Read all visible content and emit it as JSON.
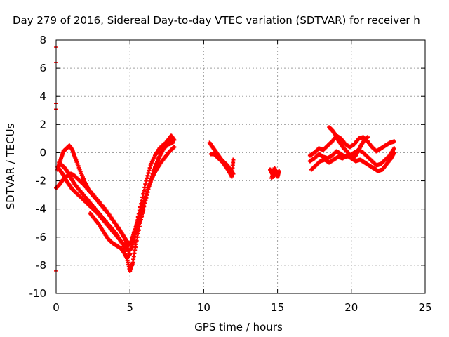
{
  "chart_data": {
    "type": "scatter",
    "title": "Day 279 of 2016, Sidereal Day-to-day VTEC variation (SDTVAR) for receiver h",
    "xlabel": "GPS time / hours",
    "ylabel": "SDTVAR / TECUs",
    "xlim": [
      0,
      25
    ],
    "ylim": [
      -10,
      8
    ],
    "x_ticks": [
      0,
      5,
      10,
      15,
      20,
      25
    ],
    "y_ticks": [
      -10,
      -8,
      -6,
      -4,
      -2,
      0,
      2,
      4,
      6,
      8
    ],
    "grid": true,
    "marker": "plus",
    "color": "#ff0000",
    "error_bar_marks": [
      {
        "x": 0,
        "y": 7.5
      },
      {
        "x": 0,
        "y": 6.4
      },
      {
        "x": 0,
        "y": 3.5
      },
      {
        "x": 0,
        "y": 3.1
      },
      {
        "x": 0,
        "y": -8.4
      }
    ],
    "series": [
      {
        "x": [
          0.1,
          0.3,
          0.5,
          0.7,
          0.9,
          1.1,
          1.3,
          1.6,
          2.0,
          2.4,
          2.8,
          3.2,
          3.6,
          4.0,
          4.4,
          4.7,
          4.9,
          5.1,
          5.3,
          5.5,
          5.8,
          6.1,
          6.4,
          6.7,
          7.0,
          7.3,
          7.6,
          7.9
        ],
        "y": [
          -1.0,
          -1.3,
          -1.6,
          -2.0,
          -2.3,
          -2.6,
          -2.8,
          -3.1,
          -3.5,
          -3.9,
          -4.3,
          -4.8,
          -5.3,
          -5.8,
          -6.3,
          -6.6,
          -7.0,
          -6.8,
          -6.0,
          -4.8,
          -3.4,
          -2.0,
          -0.9,
          -0.2,
          0.3,
          0.6,
          0.8,
          0.9
        ]
      },
      {
        "x": [
          0.2,
          0.4,
          0.6,
          0.8,
          1.0,
          1.3,
          1.7,
          2.1,
          2.5,
          2.9,
          3.3,
          3.7,
          4.1,
          4.5,
          4.8,
          5.0,
          5.2,
          5.4,
          5.7,
          6.0,
          6.3,
          6.6,
          6.9,
          7.2,
          7.5,
          7.8,
          8.0
        ],
        "y": [
          -0.7,
          -0.9,
          -1.1,
          -1.4,
          -1.8,
          -2.3,
          -2.8,
          -3.3,
          -3.8,
          -4.3,
          -4.8,
          -5.3,
          -5.8,
          -6.5,
          -7.5,
          -8.4,
          -7.8,
          -6.5,
          -5.0,
          -3.6,
          -2.4,
          -1.3,
          -0.5,
          0.2,
          0.8,
          1.2,
          0.9
        ]
      },
      {
        "x": [
          0.0,
          0.2,
          0.4,
          0.6,
          0.8,
          1.0,
          1.2,
          1.5,
          1.9,
          2.3,
          2.7,
          3.1,
          3.5,
          3.9,
          4.3,
          4.6,
          4.9,
          5.1,
          5.3,
          5.6,
          5.9,
          6.2,
          6.5,
          6.8,
          7.1,
          7.4,
          7.7,
          8.0
        ],
        "y": [
          -2.5,
          -2.3,
          -2.0,
          -1.8,
          -1.6,
          -1.5,
          -1.6,
          -1.9,
          -2.3,
          -2.8,
          -3.3,
          -3.8,
          -4.3,
          -4.9,
          -5.5,
          -6.0,
          -6.6,
          -6.3,
          -5.6,
          -4.6,
          -3.6,
          -2.6,
          -1.8,
          -1.2,
          -0.7,
          -0.3,
          0.1,
          0.4
        ]
      },
      {
        "x": [
          0.1,
          0.3,
          0.5,
          0.7,
          0.9,
          1.1,
          1.3,
          1.6,
          1.9,
          2.2,
          2.6,
          3.0,
          3.4,
          3.8,
          4.2,
          4.5,
          4.8,
          5.0,
          5.2,
          5.5,
          5.8,
          6.1,
          6.4,
          6.7,
          7.0,
          7.3,
          7.6,
          7.9
        ],
        "y": [
          -1.2,
          -0.5,
          0.1,
          0.3,
          0.5,
          0.2,
          -0.4,
          -1.2,
          -2.0,
          -2.6,
          -3.1,
          -3.6,
          -4.1,
          -4.7,
          -5.3,
          -5.8,
          -6.3,
          -6.5,
          -6.2,
          -5.4,
          -4.4,
          -3.2,
          -2.0,
          -1.1,
          -0.3,
          0.3,
          0.6,
          0.7
        ]
      },
      {
        "x": [
          2.3,
          2.6,
          2.9,
          3.2,
          3.5,
          3.8,
          4.1,
          4.4,
          4.6,
          4.8,
          5.0
        ],
        "y": [
          -4.3,
          -4.7,
          -5.1,
          -5.6,
          -6.1,
          -6.4,
          -6.6,
          -6.8,
          -7.1,
          -7.5,
          -7.2
        ]
      },
      {
        "x": [
          10.4,
          10.6,
          10.8,
          11.0,
          11.2,
          11.4,
          11.6,
          11.8,
          12.0
        ],
        "y": [
          0.7,
          0.4,
          0.1,
          -0.2,
          -0.5,
          -0.7,
          -0.9,
          -1.2,
          -1.5
        ]
      },
      {
        "x": [
          10.5,
          10.7,
          10.9,
          11.1,
          11.3,
          11.5,
          11.7,
          11.9,
          12.0
        ],
        "y": [
          -0.1,
          -0.1,
          -0.3,
          -0.5,
          -0.7,
          -1.0,
          -1.3,
          -1.7,
          -0.5
        ]
      },
      {
        "x": [
          14.5,
          14.6,
          14.7,
          14.8,
          14.9,
          15.0,
          15.1,
          14.6,
          14.8,
          15.0
        ],
        "y": [
          -1.2,
          -1.4,
          -1.6,
          -1.3,
          -1.5,
          -1.7,
          -1.3,
          -1.8,
          -1.1,
          -1.6
        ]
      },
      {
        "x": [
          17.2,
          17.5,
          17.8,
          18.1,
          18.4,
          18.7,
          19.0,
          19.3,
          19.6,
          19.9,
          20.2,
          20.5,
          20.8,
          21.1,
          21.4,
          21.7,
          22.0,
          22.3,
          22.6,
          22.9
        ],
        "y": [
          -0.2,
          0.0,
          0.3,
          0.2,
          0.5,
          0.8,
          1.2,
          1.0,
          0.6,
          0.4,
          0.6,
          1.0,
          1.1,
          0.8,
          0.4,
          0.1,
          0.3,
          0.5,
          0.7,
          0.8
        ]
      },
      {
        "x": [
          17.2,
          17.5,
          17.8,
          18.1,
          18.4,
          18.7,
          19.0,
          19.3,
          19.6,
          19.9,
          20.2,
          20.5,
          20.8,
          21.1,
          21.4,
          21.7,
          22.0,
          22.3,
          22.6,
          22.9
        ],
        "y": [
          -0.6,
          -0.4,
          -0.1,
          -0.3,
          -0.4,
          -0.2,
          0.1,
          -0.1,
          -0.3,
          -0.2,
          0.0,
          0.2,
          0.0,
          -0.3,
          -0.6,
          -0.9,
          -0.8,
          -0.5,
          -0.2,
          0.3
        ]
      },
      {
        "x": [
          17.3,
          17.6,
          17.9,
          18.2,
          18.5,
          18.8,
          19.1,
          19.4,
          19.7,
          20.0,
          20.3,
          20.6,
          20.9,
          21.2,
          21.5,
          21.8,
          22.1,
          22.4,
          22.7,
          22.9
        ],
        "y": [
          -1.2,
          -0.9,
          -0.6,
          -0.5,
          -0.7,
          -0.5,
          -0.3,
          -0.4,
          -0.2,
          -0.4,
          -0.6,
          -0.5,
          -0.7,
          -0.9,
          -1.1,
          -1.3,
          -1.2,
          -0.8,
          -0.4,
          0.0
        ]
      },
      {
        "x": [
          18.5,
          18.7,
          18.9,
          19.1,
          19.3,
          19.5,
          19.7,
          19.9,
          20.1,
          20.3,
          20.5,
          20.7,
          20.9,
          21.1
        ],
        "y": [
          1.8,
          1.6,
          1.3,
          0.9,
          0.6,
          0.3,
          0.1,
          -0.2,
          -0.4,
          -0.2,
          0.2,
          0.6,
          0.9,
          1.1
        ]
      }
    ]
  }
}
